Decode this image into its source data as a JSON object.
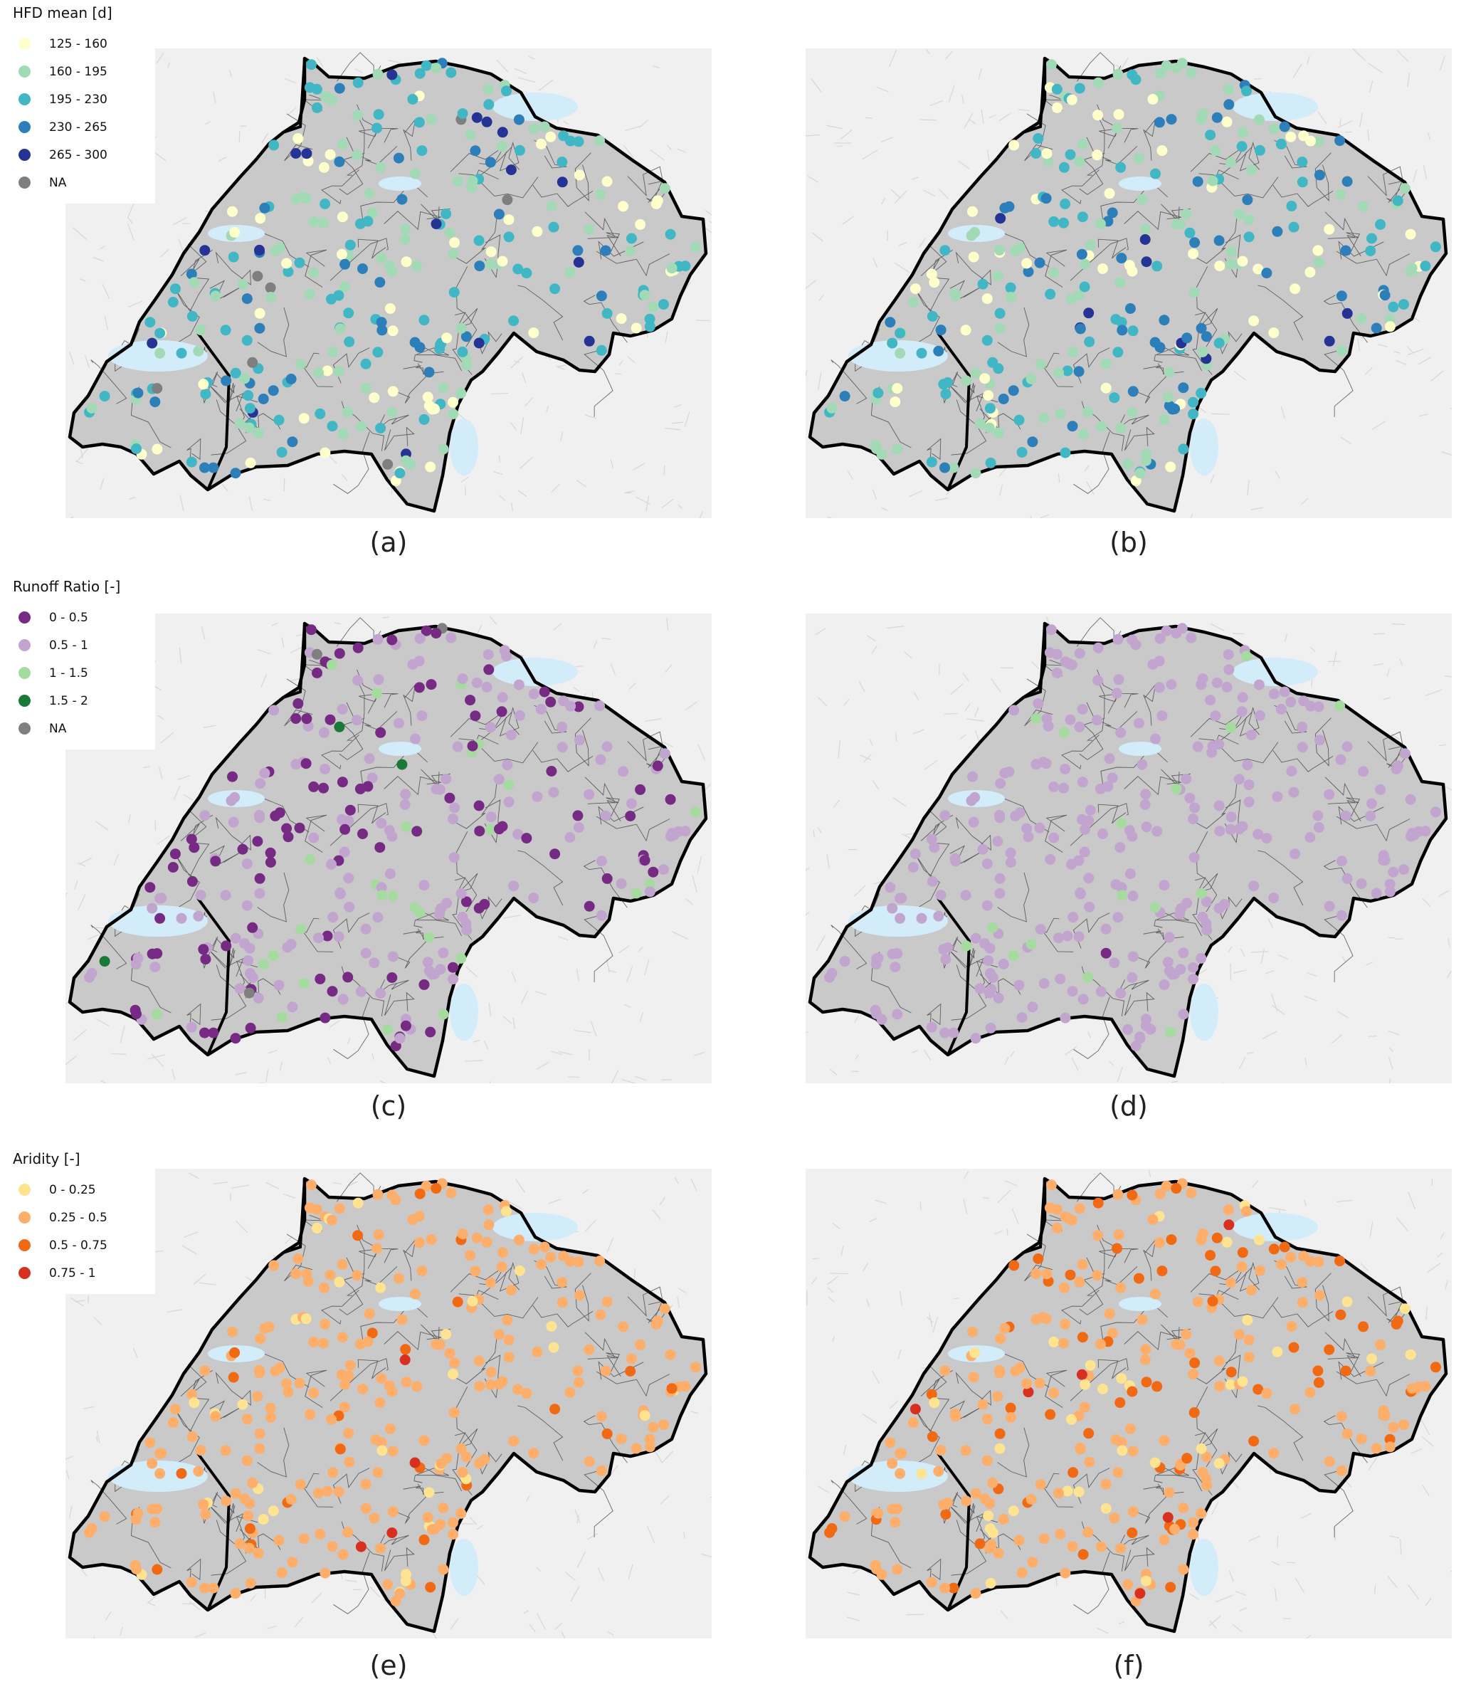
{
  "legends": [
    {
      "title": "HFD mean [d]",
      "items": [
        {
          "label": "125 - 160",
          "color": "#ffffcc"
        },
        {
          "label": "160 - 195",
          "color": "#a1dab4"
        },
        {
          "label": "195 - 230",
          "color": "#41b6c4"
        },
        {
          "label": "230 - 265",
          "color": "#2c7fb8"
        },
        {
          "label": "265 - 300",
          "color": "#253494"
        },
        {
          "label": "NA",
          "color": "#7f7f7f"
        }
      ]
    },
    {
      "title": "Runoff Ratio [-]",
      "items": [
        {
          "label": "0 - 0.5",
          "color": "#762a83"
        },
        {
          "label": "0.5 - 1",
          "color": "#c2a5cf"
        },
        {
          "label": "1 - 1.5",
          "color": "#a6dba0"
        },
        {
          "label": "1.5 - 2",
          "color": "#1b7837"
        },
        {
          "label": "NA",
          "color": "#7f7f7f"
        }
      ]
    },
    {
      "title": "Aridity [-]",
      "items": [
        {
          "label": "0 - 0.25",
          "color": "#fee391"
        },
        {
          "label": "0.25 - 0.5",
          "color": "#fdae6b"
        },
        {
          "label": "0.5 - 0.75",
          "color": "#f16913"
        },
        {
          "label": "0.75 - 1",
          "color": "#d7301f"
        }
      ]
    }
  ],
  "panels": [
    {
      "caption": "(a)",
      "legend": 0,
      "weights": [
        0.2,
        0.3,
        0.3,
        0.15,
        0.03,
        0.02
      ]
    },
    {
      "caption": "(b)",
      "legend": 0,
      "weights": [
        0.2,
        0.35,
        0.25,
        0.17,
        0.03,
        0.0
      ]
    },
    {
      "caption": "(c)",
      "legend": 1,
      "weights": [
        0.35,
        0.55,
        0.08,
        0.01,
        0.01
      ]
    },
    {
      "caption": "(d)",
      "legend": 1,
      "weights": [
        0.02,
        0.93,
        0.05,
        0.0,
        0.0
      ]
    },
    {
      "caption": "(e)",
      "legend": 2,
      "weights": [
        0.1,
        0.78,
        0.1,
        0.02
      ]
    },
    {
      "caption": "(f)",
      "legend": 2,
      "weights": [
        0.1,
        0.65,
        0.22,
        0.03
      ]
    }
  ],
  "colors": {
    "background": "#f0f0f0",
    "relief": "#d6d6d6",
    "lake": "#d2ecf9",
    "border": "#000000"
  }
}
